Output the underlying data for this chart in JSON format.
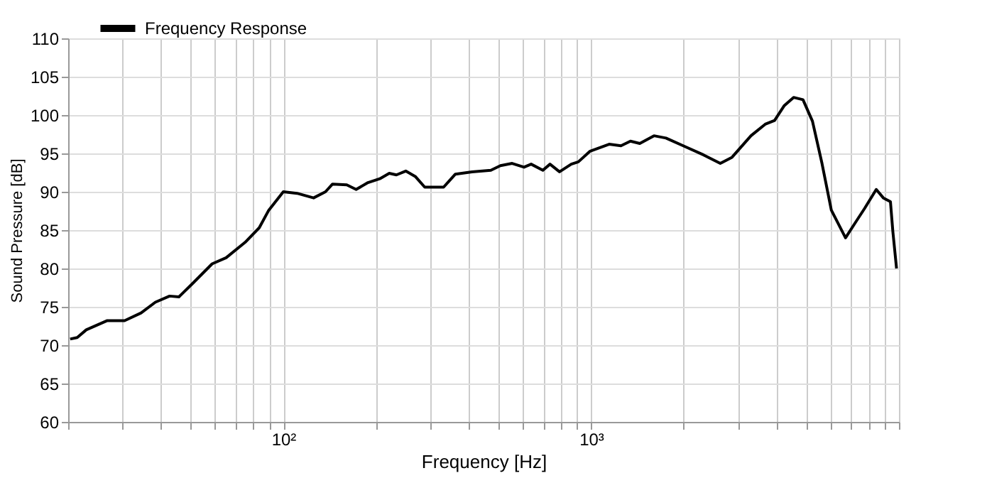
{
  "chart_data": {
    "type": "line",
    "xlabel": "Frequency  [Hz]",
    "ylabel": "Sound Pressure [dB]",
    "log": "x",
    "x": [
      20.3,
      21.4,
      22.9,
      26.8,
      30.5,
      34.5,
      38.4,
      42.7,
      45.8,
      50.9,
      58.7,
      65.2,
      75.1,
      83.5,
      89.7,
      100,
      110.8,
      125.4,
      137.1,
      144.5,
      160.7,
      172.4,
      188.4,
      205.8,
      220.9,
      233,
      249.9,
      268.3,
      288,
      331.7,
      362.2,
      410.2,
      472.3,
      507.3,
      553.9,
      605.3,
      638.4,
      697,
      735.1,
      789.4,
      862,
      908.9,
      992.7,
      1144,
      1250,
      1342,
      1439,
      1600,
      1750,
      2015,
      2320,
      2627,
      2869,
      3306,
      3676,
      3944,
      4234,
      4547,
      4878,
      5236,
      5623,
      6030,
      6706,
      7197,
      7727,
      8438,
      8897,
      9384,
      9555,
      9822
    ],
    "series": [
      {
        "name": "Frequency Response",
        "color": "#000000",
        "values": [
          70.8,
          71.0,
          72.0,
          73.2,
          73.2,
          74.2,
          75.6,
          76.4,
          76.3,
          78.1,
          80.6,
          81.4,
          83.4,
          85.3,
          87.6,
          90.0,
          89.8,
          89.2,
          90.0,
          91.0,
          90.9,
          90.3,
          91.2,
          91.7,
          92.4,
          92.2,
          92.7,
          92.0,
          90.6,
          90.6,
          92.3,
          92.6,
          92.8,
          93.4,
          93.7,
          93.2,
          93.6,
          92.8,
          93.6,
          92.6,
          93.6,
          93.9,
          95.3,
          96.2,
          96.0,
          96.6,
          96.3,
          97.3,
          97.0,
          95.9,
          94.8,
          93.7,
          94.5,
          97.3,
          98.8,
          99.3,
          101.2,
          102.3,
          102.0,
          99.2,
          93.7,
          87.6,
          84.0,
          85.9,
          87.8,
          90.3,
          89.2,
          88.7,
          84.8,
          80.0
        ]
      }
    ],
    "xlim": [
      20,
      10000
    ],
    "xticks": [
      {
        "value": 20,
        "label": null
      },
      {
        "value": 30,
        "label": null
      },
      {
        "value": 40,
        "label": null
      },
      {
        "value": 50,
        "label": null
      },
      {
        "value": 60,
        "label": null
      },
      {
        "value": 70,
        "label": null
      },
      {
        "value": 80,
        "label": null
      },
      {
        "value": 90,
        "label": null
      },
      {
        "value": 100,
        "label": "10²"
      },
      {
        "value": 200,
        "label": null
      },
      {
        "value": 300,
        "label": null
      },
      {
        "value": 400,
        "label": null
      },
      {
        "value": 500,
        "label": null
      },
      {
        "value": 600,
        "label": null
      },
      {
        "value": 700,
        "label": null
      },
      {
        "value": 800,
        "label": null
      },
      {
        "value": 900,
        "label": null
      },
      {
        "value": 1000,
        "label": "10³"
      },
      {
        "value": 2000,
        "label": null
      },
      {
        "value": 3000,
        "label": null
      },
      {
        "value": 4000,
        "label": null
      },
      {
        "value": 5000,
        "label": null
      },
      {
        "value": 6000,
        "label": null
      },
      {
        "value": 7000,
        "label": null
      },
      {
        "value": 8000,
        "label": null
      },
      {
        "value": 9000,
        "label": null
      },
      {
        "value": 10000,
        "label": null
      }
    ],
    "ylim": [
      60,
      110
    ],
    "yticks": [
      60,
      65,
      70,
      75,
      80,
      85,
      90,
      95,
      100,
      105,
      110
    ],
    "grid": true,
    "legend": "top left",
    "marker": "none",
    "line_style": "solid"
  }
}
